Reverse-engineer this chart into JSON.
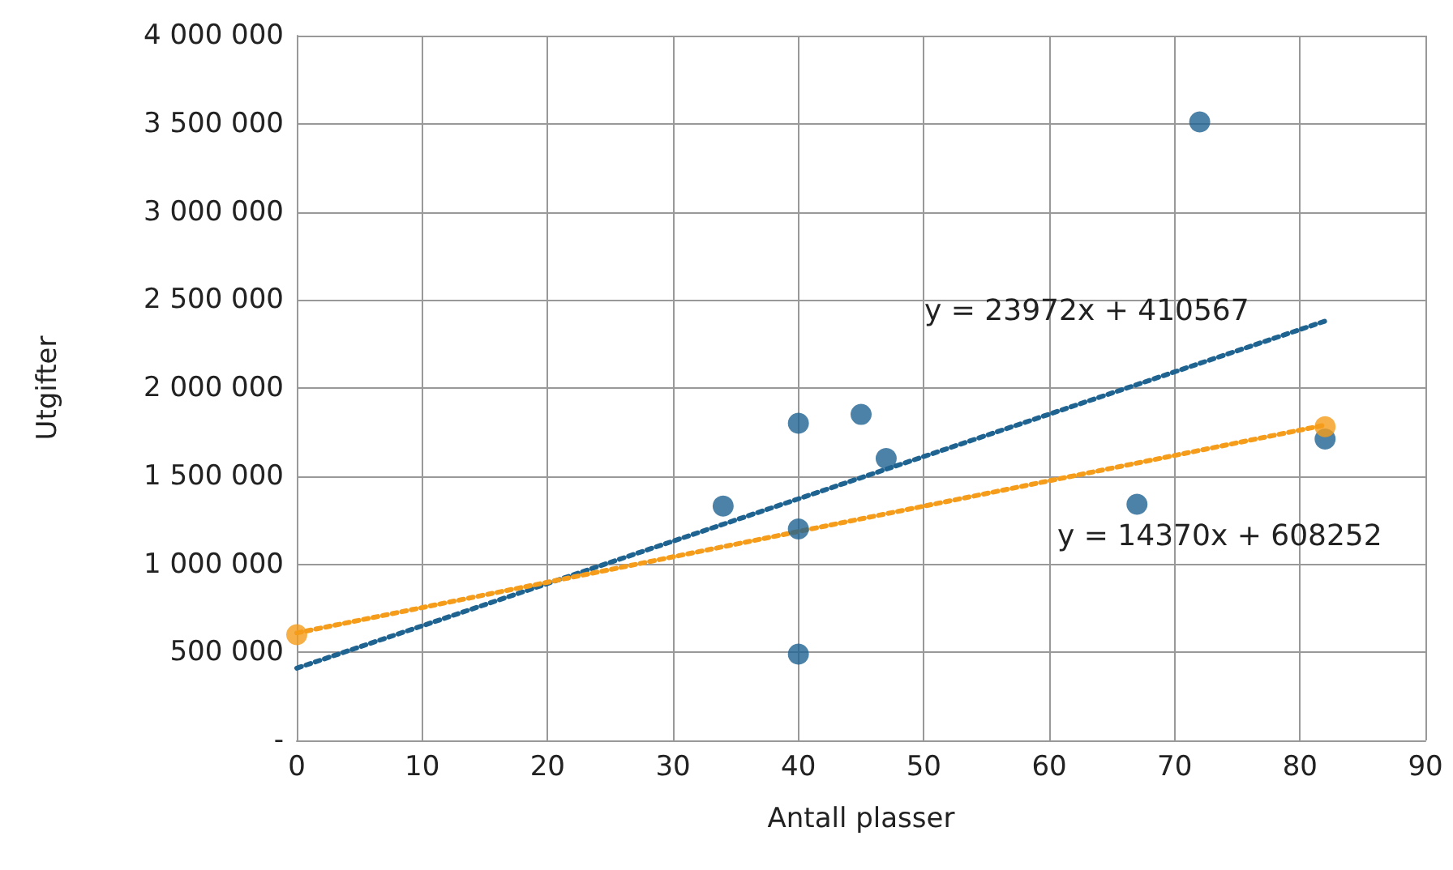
{
  "chart_data": {
    "type": "scatter",
    "xlabel": "Antall plasser",
    "ylabel": "Utgifter",
    "xlim": [
      0,
      90
    ],
    "xticks": [
      0,
      10,
      20,
      30,
      40,
      50,
      60,
      70,
      80,
      90
    ],
    "ylim": [
      0,
      4000000
    ],
    "yticks": [
      {
        "value": 0,
        "label": "-"
      },
      {
        "value": 500000,
        "label": "500 000"
      },
      {
        "value": 1000000,
        "label": "1 000 000"
      },
      {
        "value": 1500000,
        "label": "1 500 000"
      },
      {
        "value": 2000000,
        "label": "2 000 000"
      },
      {
        "value": 2500000,
        "label": "2 500 000"
      },
      {
        "value": 3000000,
        "label": "3 000 000"
      },
      {
        "value": 3500000,
        "label": "3 500 000"
      },
      {
        "value": 4000000,
        "label": "4 000 000"
      }
    ],
    "grid": true,
    "marker": "circle",
    "series": [
      {
        "color": "#1f6391",
        "x": [
          34,
          40,
          40,
          40,
          45,
          47,
          67,
          72,
          82
        ],
        "values": [
          1330000,
          1800000,
          1200000,
          490000,
          1850000,
          1600000,
          1340000,
          3510000,
          1710000
        ]
      },
      {
        "color": "#f59c1a",
        "x": [
          0,
          82
        ],
        "values": [
          600000,
          1780000
        ]
      },
      {
        "type": "line",
        "color": "#1f6391",
        "line_style": "dotted",
        "marker": "none",
        "x": [
          0,
          82
        ],
        "values": [
          410000,
          2380000
        ]
      },
      {
        "type": "line",
        "color": "#f59c1a",
        "line_style": "dotted",
        "marker": "none",
        "x": [
          0,
          82
        ],
        "values": [
          610000,
          1790000
        ]
      }
    ],
    "annotations": [
      "y = 23972x + 410567",
      "y = 14370x + 608252"
    ]
  }
}
